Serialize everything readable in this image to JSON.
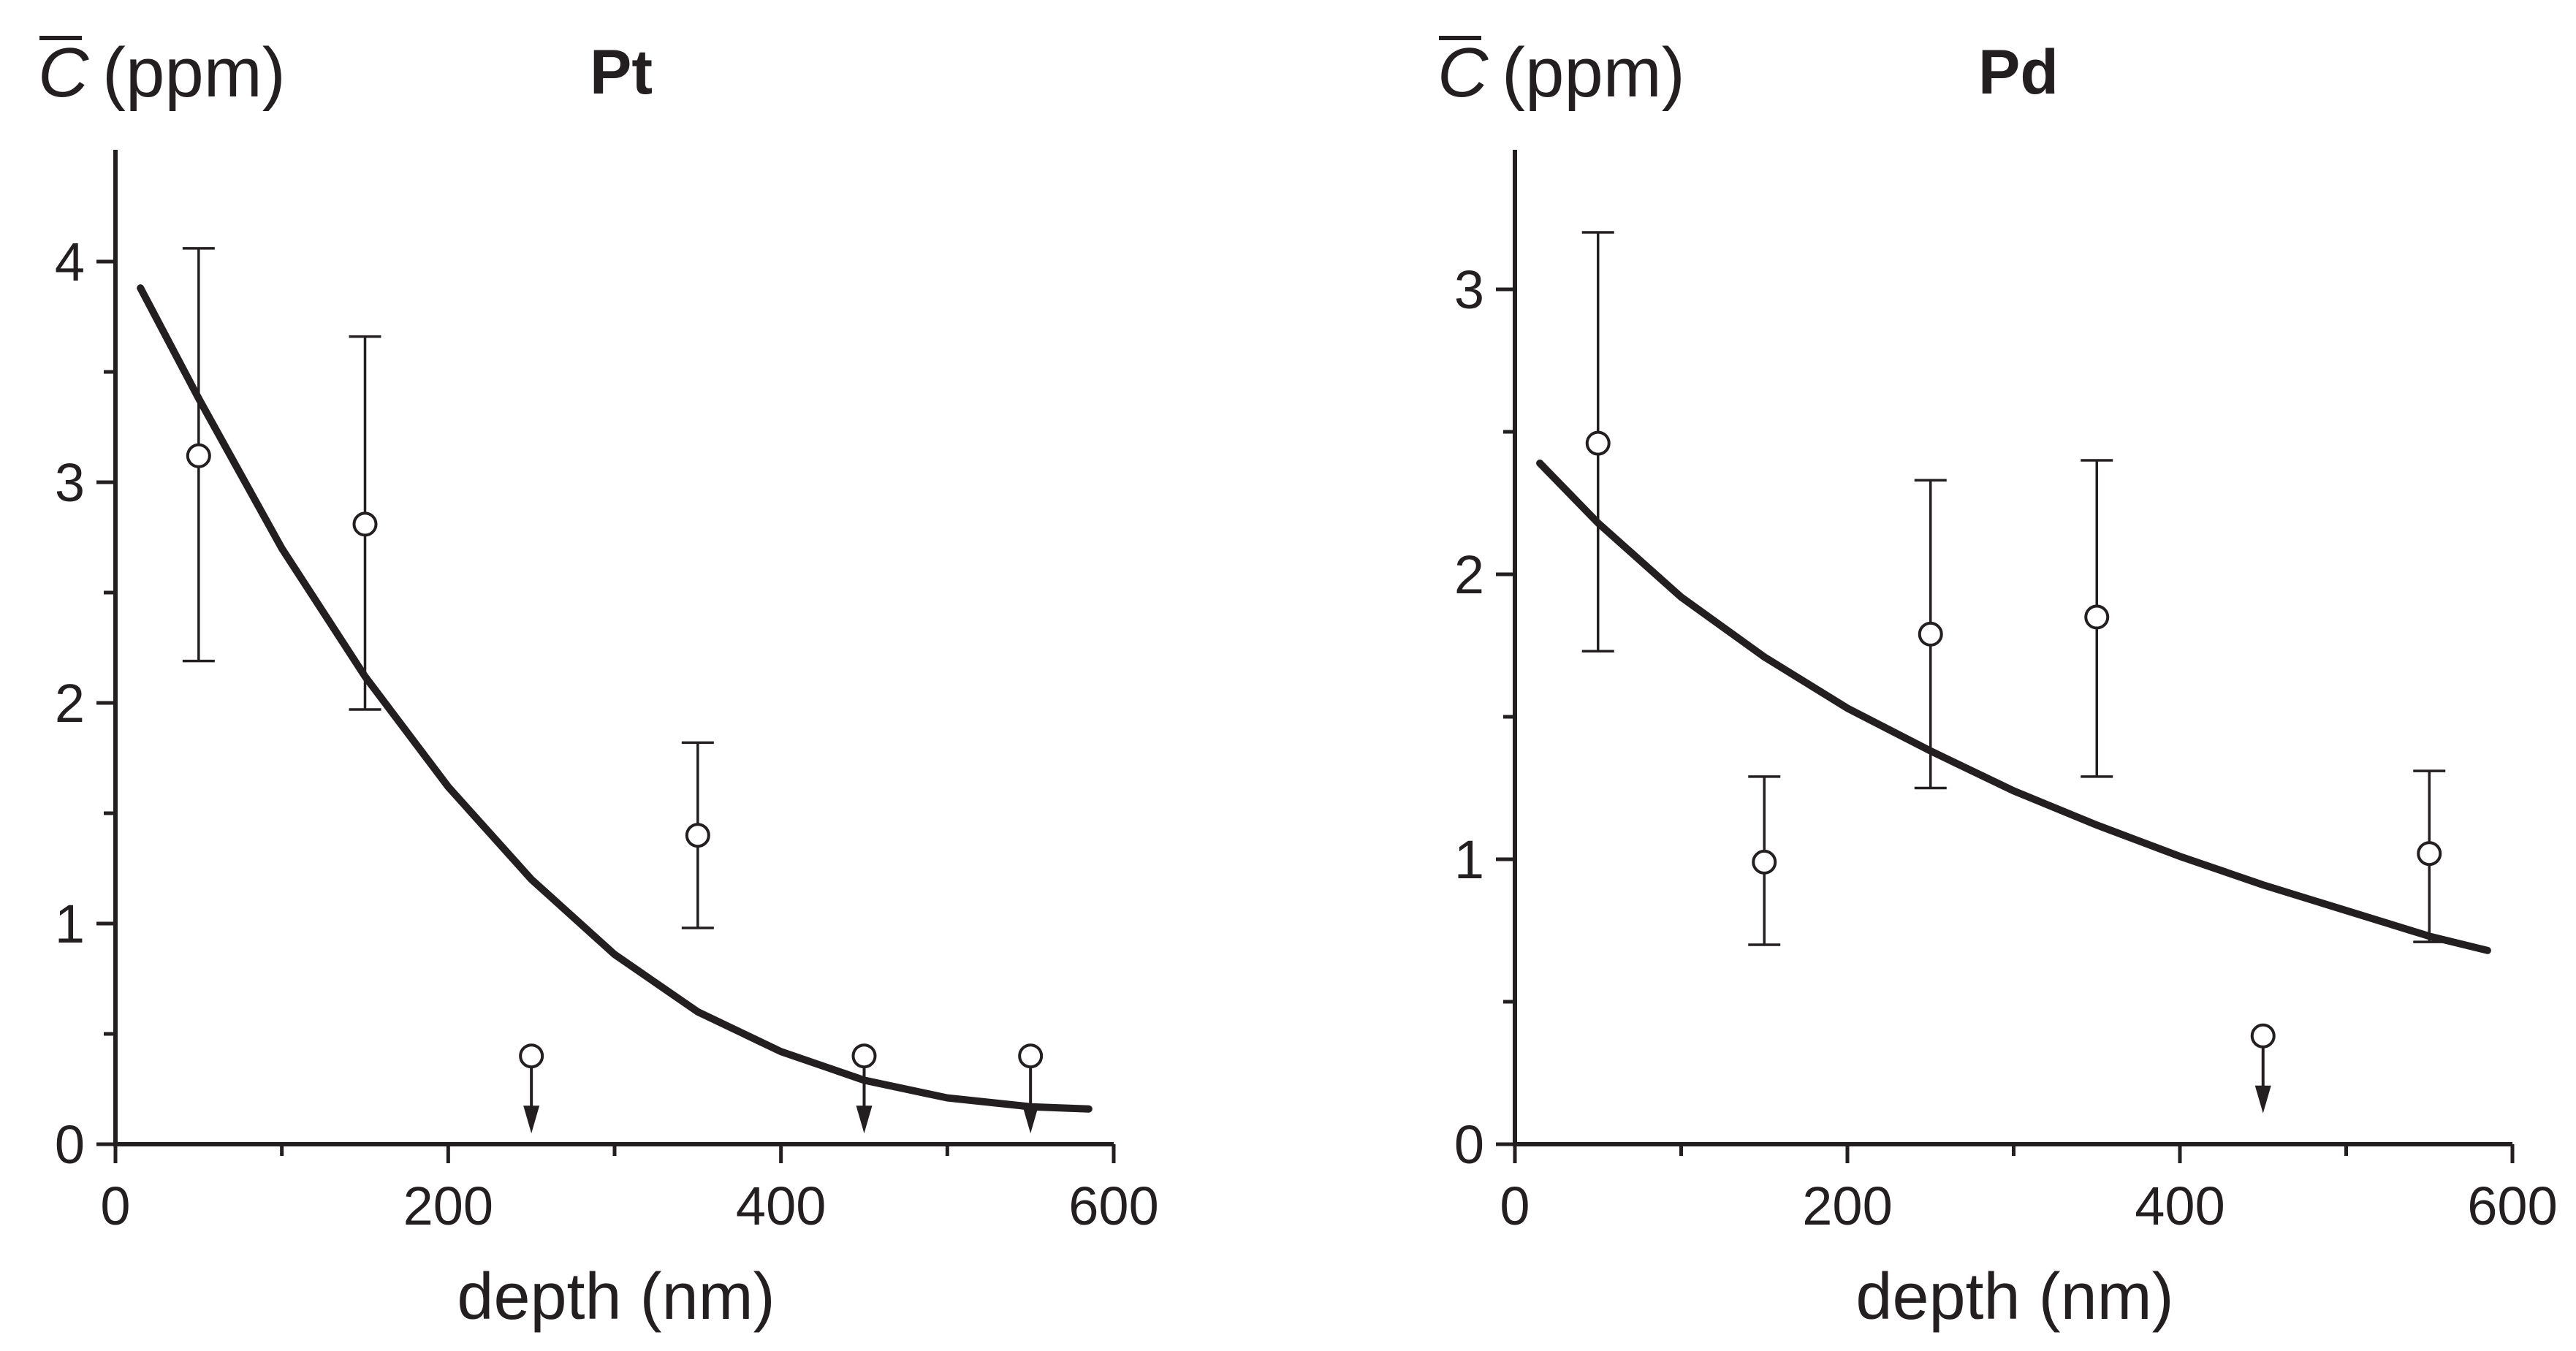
{
  "chart_data": [
    {
      "type": "scatter",
      "title": "Pt",
      "ylabel_symbol": "C",
      "ylabel_unit": "(ppm)",
      "xlabel": "depth (nm)",
      "xlim": [
        0,
        600
      ],
      "ylim": [
        0,
        4.5
      ],
      "xticks_major": [
        0,
        200,
        400,
        600
      ],
      "xtick_labels": [
        "0",
        "200",
        "400",
        "600"
      ],
      "xticks_minor": [
        100,
        300,
        500
      ],
      "yticks_major": [
        0,
        1,
        2,
        3,
        4
      ],
      "ytick_labels": [
        "0",
        "1",
        "2",
        "3",
        "4"
      ],
      "yticks_minor": [
        0.5,
        1.5,
        2.5,
        3.5
      ],
      "points": [
        {
          "x": 50,
          "y": 3.12,
          "err_low": 2.19,
          "err_high": 4.06
        },
        {
          "x": 150,
          "y": 2.81,
          "err_low": 1.97,
          "err_high": 3.66
        },
        {
          "x": 350,
          "y": 1.4,
          "err_low": 0.98,
          "err_high": 1.82
        }
      ],
      "upper_limits": [
        {
          "x": 250,
          "y": 0.4
        },
        {
          "x": 450,
          "y": 0.4
        },
        {
          "x": 550,
          "y": 0.4
        }
      ],
      "fit": {
        "x": [
          15,
          50,
          100,
          150,
          200,
          250,
          300,
          350,
          400,
          450,
          500,
          550,
          585
        ],
        "y": [
          3.88,
          3.38,
          2.7,
          2.12,
          1.62,
          1.2,
          0.86,
          0.6,
          0.42,
          0.29,
          0.21,
          0.17,
          0.16
        ]
      }
    },
    {
      "type": "scatter",
      "title": "Pd",
      "ylabel_symbol": "C",
      "ylabel_unit": "(ppm)",
      "xlabel": "depth (nm)",
      "xlim": [
        0,
        600
      ],
      "ylim": [
        0,
        3.5
      ],
      "xticks_major": [
        0,
        200,
        400,
        600
      ],
      "xtick_labels": [
        "0",
        "200",
        "400",
        "600"
      ],
      "xticks_minor": [
        100,
        300,
        500
      ],
      "yticks_major": [
        0,
        1,
        2,
        3
      ],
      "ytick_labels": [
        "0",
        "1",
        "2",
        "3"
      ],
      "yticks_minor": [
        0.5,
        1.5,
        2.5
      ],
      "points": [
        {
          "x": 50,
          "y": 2.46,
          "err_low": 1.73,
          "err_high": 3.2
        },
        {
          "x": 150,
          "y": 0.99,
          "err_low": 0.7,
          "err_high": 1.29
        },
        {
          "x": 250,
          "y": 1.79,
          "err_low": 1.25,
          "err_high": 2.33
        },
        {
          "x": 350,
          "y": 1.85,
          "err_low": 1.29,
          "err_high": 2.4
        },
        {
          "x": 550,
          "y": 1.02,
          "err_low": 0.71,
          "err_high": 1.31
        }
      ],
      "upper_limits": [
        {
          "x": 450,
          "y": 0.38
        }
      ],
      "fit": {
        "x": [
          15,
          50,
          100,
          150,
          200,
          250,
          300,
          350,
          400,
          450,
          500,
          550,
          585
        ],
        "y": [
          2.39,
          2.18,
          1.92,
          1.71,
          1.53,
          1.38,
          1.24,
          1.12,
          1.01,
          0.91,
          0.82,
          0.73,
          0.68
        ]
      }
    }
  ]
}
